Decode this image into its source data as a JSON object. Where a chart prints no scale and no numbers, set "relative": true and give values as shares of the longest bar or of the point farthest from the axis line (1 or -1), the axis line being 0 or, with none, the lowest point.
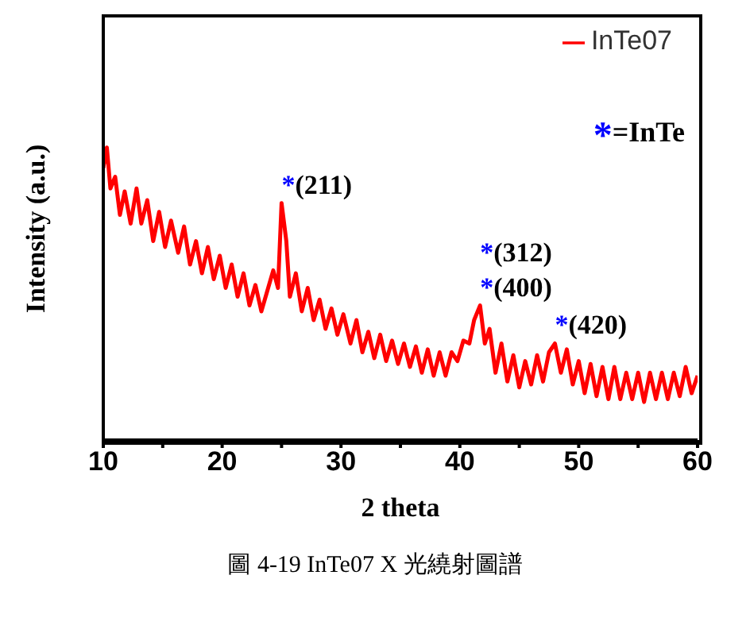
{
  "chart_data": {
    "type": "line",
    "relative": true,
    "xlabel": "2 theta",
    "ylabel": "Intensity (a.u.)",
    "xlim": [
      10,
      60
    ],
    "xticks": [
      10,
      {
        "value": 15,
        "label": null
      },
      20,
      {
        "value": 25,
        "label": null
      },
      30,
      {
        "value": 35,
        "label": null
      },
      40,
      {
        "value": 45,
        "label": null
      },
      50,
      {
        "value": 55,
        "label": null
      },
      60
    ],
    "legend": "top right",
    "marker": "none",
    "line_style": "solid",
    "series": [
      {
        "name": "InTe07",
        "color": "#ff0000",
        "x": [
          10,
          10.3,
          10.6,
          11,
          11.4,
          11.8,
          12.3,
          12.8,
          13.2,
          13.7,
          14.2,
          14.7,
          15.2,
          15.7,
          16.3,
          16.8,
          17.3,
          17.8,
          18.3,
          18.8,
          19.3,
          19.8,
          20.3,
          20.8,
          21.3,
          21.8,
          22.3,
          22.8,
          23.3,
          23.8,
          24.3,
          24.7,
          25.0,
          25.4,
          25.7,
          26.2,
          26.7,
          27.2,
          27.7,
          28.2,
          28.7,
          29.2,
          29.7,
          30.2,
          30.8,
          31.3,
          31.8,
          32.3,
          32.8,
          33.3,
          33.8,
          34.3,
          34.8,
          35.3,
          35.8,
          36.3,
          36.8,
          37.3,
          37.8,
          38.3,
          38.8,
          39.3,
          39.8,
          40.3,
          40.8,
          41.2,
          41.7,
          42.1,
          42.5,
          43.0,
          43.5,
          44.0,
          44.5,
          45.0,
          45.5,
          46.0,
          46.5,
          47.0,
          47.5,
          48.0,
          48.5,
          49.0,
          49.5,
          50.0,
          50.5,
          51.0,
          51.5,
          52.0,
          52.5,
          53.0,
          53.5,
          54.0,
          54.5,
          55.0,
          55.5,
          56.0,
          56.5,
          57.0,
          57.5,
          58.0,
          58.5,
          59.0,
          59.5,
          60.0
        ],
        "values": [
          0.93,
          1.0,
          0.86,
          0.9,
          0.77,
          0.85,
          0.74,
          0.86,
          0.74,
          0.82,
          0.68,
          0.78,
          0.66,
          0.75,
          0.64,
          0.73,
          0.6,
          0.68,
          0.57,
          0.66,
          0.55,
          0.63,
          0.52,
          0.6,
          0.49,
          0.57,
          0.46,
          0.53,
          0.44,
          0.51,
          0.58,
          0.52,
          0.81,
          0.68,
          0.49,
          0.57,
          0.44,
          0.52,
          0.41,
          0.48,
          0.38,
          0.45,
          0.36,
          0.43,
          0.33,
          0.41,
          0.3,
          0.37,
          0.28,
          0.36,
          0.27,
          0.34,
          0.26,
          0.33,
          0.25,
          0.32,
          0.23,
          0.31,
          0.22,
          0.3,
          0.22,
          0.3,
          0.27,
          0.34,
          0.33,
          0.41,
          0.46,
          0.33,
          0.38,
          0.23,
          0.33,
          0.2,
          0.29,
          0.18,
          0.27,
          0.19,
          0.29,
          0.2,
          0.3,
          0.33,
          0.23,
          0.31,
          0.19,
          0.27,
          0.16,
          0.26,
          0.15,
          0.25,
          0.14,
          0.25,
          0.14,
          0.23,
          0.14,
          0.23,
          0.13,
          0.23,
          0.14,
          0.23,
          0.14,
          0.23,
          0.15,
          0.25,
          0.16,
          0.22
        ]
      }
    ],
    "annotations": [
      {
        "text": "*(211)",
        "x": 25.0,
        "y": 0.81
      },
      {
        "text": "*(400)",
        "x": 41.7,
        "y": 0.46
      },
      {
        "text": "*(312)",
        "x": 41.7,
        "y": 0.46
      },
      {
        "text": "*(420)",
        "x": 48.0,
        "y": 0.33
      },
      "*=InTe",
      "圖 4-19 InTe07 X 光繞射圖譜"
    ]
  }
}
